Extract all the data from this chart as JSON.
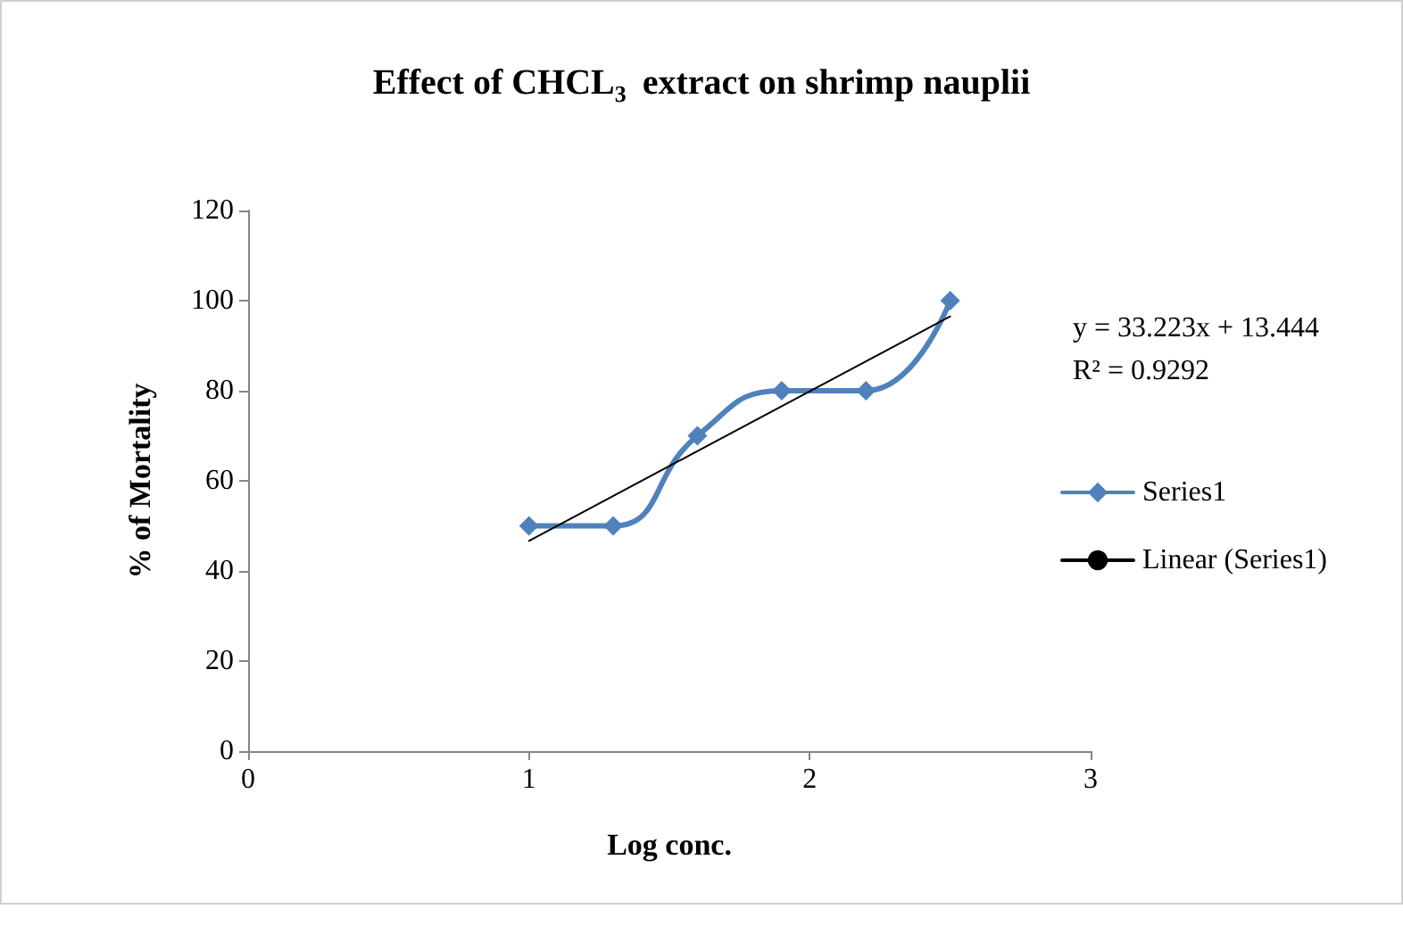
{
  "chart_data": {
    "type": "line",
    "title": "Effect of CHCL$_{3}$ extract on shrimp nauplii",
    "xlabel": "Log conc.",
    "ylabel": "% of Mortality",
    "x": [
      1,
      1.3,
      1.6,
      1.9,
      2.2,
      2.5
    ],
    "series": [
      {
        "name": "Series1",
        "color": "#4f81bd",
        "values": [
          50,
          50,
          70,
          80,
          80,
          100
        ],
        "marker": "diamond"
      },
      {
        "name": "Linear (Series1)",
        "type": "line",
        "color": "#000000",
        "x": [
          1,
          2.5
        ],
        "values": [
          46.67,
          96.5
        ],
        "marker": "none"
      }
    ],
    "annotations": [
      "y = 33.223x + 13.444",
      "R² = 0.9292"
    ],
    "xlim": [
      0,
      3
    ],
    "xticks": [
      0,
      1,
      2,
      3
    ],
    "ylim": [
      0,
      120
    ],
    "yticks": [
      0,
      20,
      40,
      60,
      80,
      100,
      120
    ],
    "grid": false,
    "legend": "right",
    "line_style": "solid"
  }
}
